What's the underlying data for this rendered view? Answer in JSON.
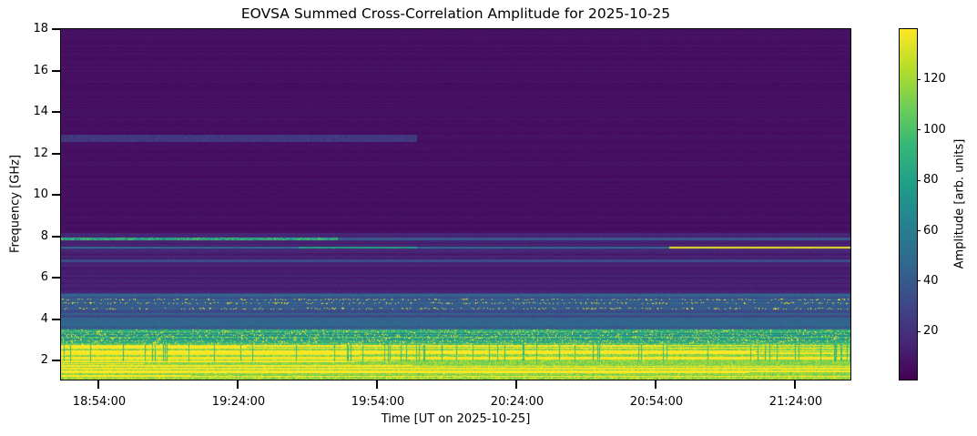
{
  "chart_data": {
    "type": "heatmap",
    "title": "EOVSA Summed Cross-Correlation Amplitude for 2025-10-25",
    "xlabel": "Time [UT on 2025-10-25]",
    "ylabel": "Frequency [GHz]",
    "colorbar_label": "Amplitude [arb. units]",
    "colormap": "viridis",
    "xlim": [
      "18:46:00",
      "21:36:00"
    ],
    "ylim": [
      1.1,
      18
    ],
    "clim": [
      1,
      140
    ],
    "xticks": [
      "18:54:00",
      "19:24:00",
      "19:54:00",
      "20:24:00",
      "20:54:00",
      "21:24:00"
    ],
    "yticks": [
      2,
      4,
      6,
      8,
      10,
      12,
      14,
      16,
      18
    ],
    "cbar_ticks": [
      20,
      40,
      60,
      80,
      100,
      120
    ],
    "features": [
      {
        "freq_range": [
          1.1,
          2.8
        ],
        "amplitude": 140,
        "note": "saturated"
      },
      {
        "freq_range": [
          3.0,
          3.5
        ],
        "amplitude": 70
      },
      {
        "freq_range": [
          4.0,
          5.3
        ],
        "amplitude": 35
      },
      {
        "freq_range": [
          6.8,
          6.9
        ],
        "amplitude": 35
      },
      {
        "freq_range": [
          7.45,
          7.55
        ],
        "amplitude": 60
      },
      {
        "freq_range": [
          7.85,
          7.95
        ],
        "amplitude": 70
      },
      {
        "freq_range": [
          12.6,
          12.9
        ],
        "amplitude": 25
      }
    ]
  }
}
